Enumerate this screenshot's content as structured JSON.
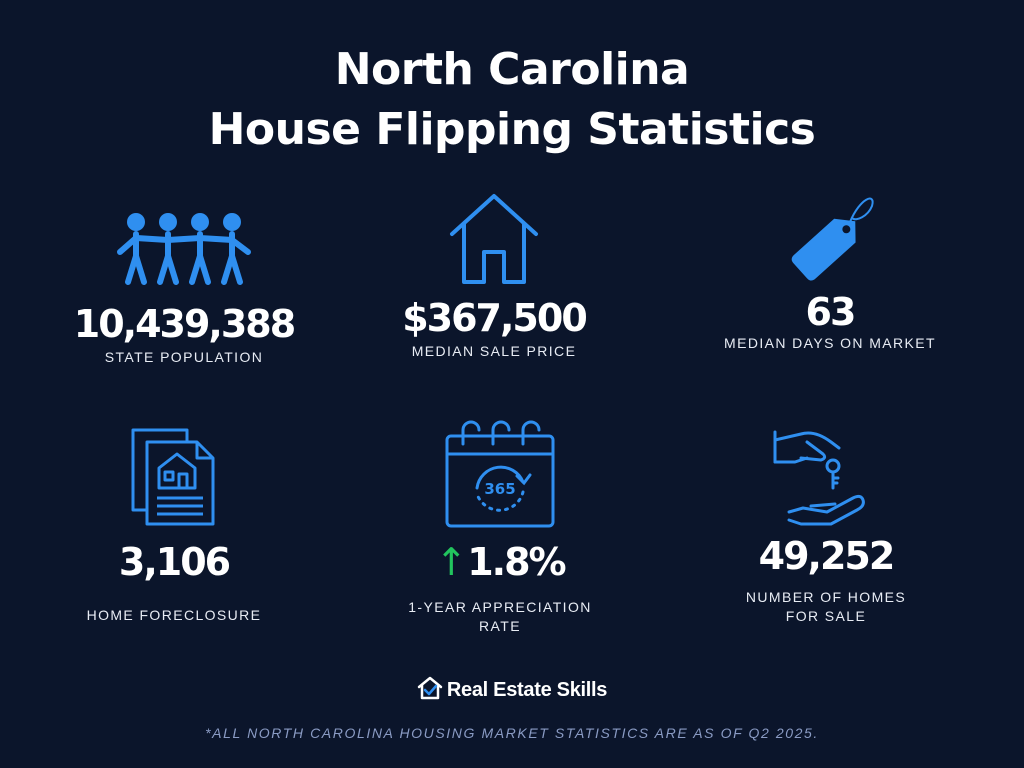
{
  "title": {
    "line1": "North Carolina",
    "line2": "House Flipping Statistics"
  },
  "colors": {
    "background": "#0b152b",
    "accent": "#2f8ff0",
    "up_arrow": "#22c55e"
  },
  "stats": [
    {
      "icon": "people-icon",
      "value": "10,439,388",
      "label": "STATE POPULATION"
    },
    {
      "icon": "house-icon",
      "value": "$367,500",
      "label": "MEDIAN SALE PRICE"
    },
    {
      "icon": "price-tag-icon",
      "value": "63",
      "label": "MEDIAN DAYS ON MARKET"
    },
    {
      "icon": "foreclosure-document-icon",
      "value": "3,106",
      "label": "HOME FORECLOSURE"
    },
    {
      "icon": "calendar-365-icon",
      "arrow": "↑",
      "value": "1.8%",
      "label_line1": "1-YEAR APPRECIATION",
      "label_line2": "RATE"
    },
    {
      "icon": "hand-keys-icon",
      "value": "49,252",
      "label_line1": "NUMBER OF HOMES",
      "label_line2": "FOR SALE"
    }
  ],
  "calendar_text": "365",
  "brand": {
    "name": "Real Estate Skills",
    "icon": "house-check-logo-icon"
  },
  "footnote": "*ALL NORTH CAROLINA HOUSING MARKET STATISTICS ARE AS OF Q2 2025."
}
